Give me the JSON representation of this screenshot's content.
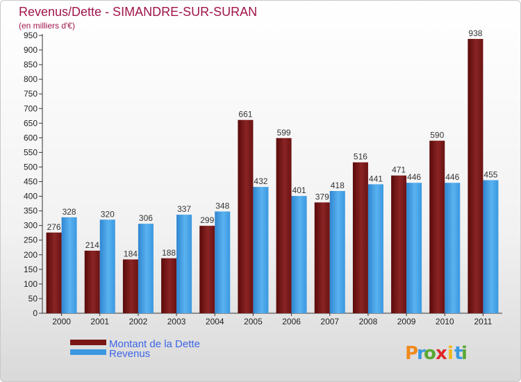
{
  "chart_data": {
    "type": "bar",
    "title": "Revenus/Dette - SIMANDRE-SUR-SURAN",
    "subtitle": "(en milliers d'€)",
    "categories": [
      "2000",
      "2001",
      "2002",
      "2003",
      "2004",
      "2005",
      "2006",
      "2007",
      "2008",
      "2009",
      "2010",
      "2011"
    ],
    "series": [
      {
        "name": "Montant de la Dette",
        "color": "#7a1616",
        "values": [
          276,
          214,
          184,
          188,
          299,
          661,
          599,
          379,
          516,
          471,
          590,
          938
        ]
      },
      {
        "name": "Revenus",
        "color": "#3a98e0",
        "values": [
          328,
          320,
          306,
          337,
          348,
          432,
          401,
          418,
          441,
          446,
          446,
          455
        ]
      }
    ],
    "ylim": [
      0,
      950
    ],
    "ytick_step": 50,
    "grid": false,
    "legend_position": "bottom-left"
  },
  "logo": {
    "letters": [
      "P",
      "r",
      "o",
      "x",
      "i",
      "t",
      "i"
    ],
    "colors": [
      "#f08a1c",
      "#3a98e0",
      "#5aa832",
      "#e0282a",
      "#f0b81c",
      "#3a98e0",
      "#5aa832"
    ]
  }
}
